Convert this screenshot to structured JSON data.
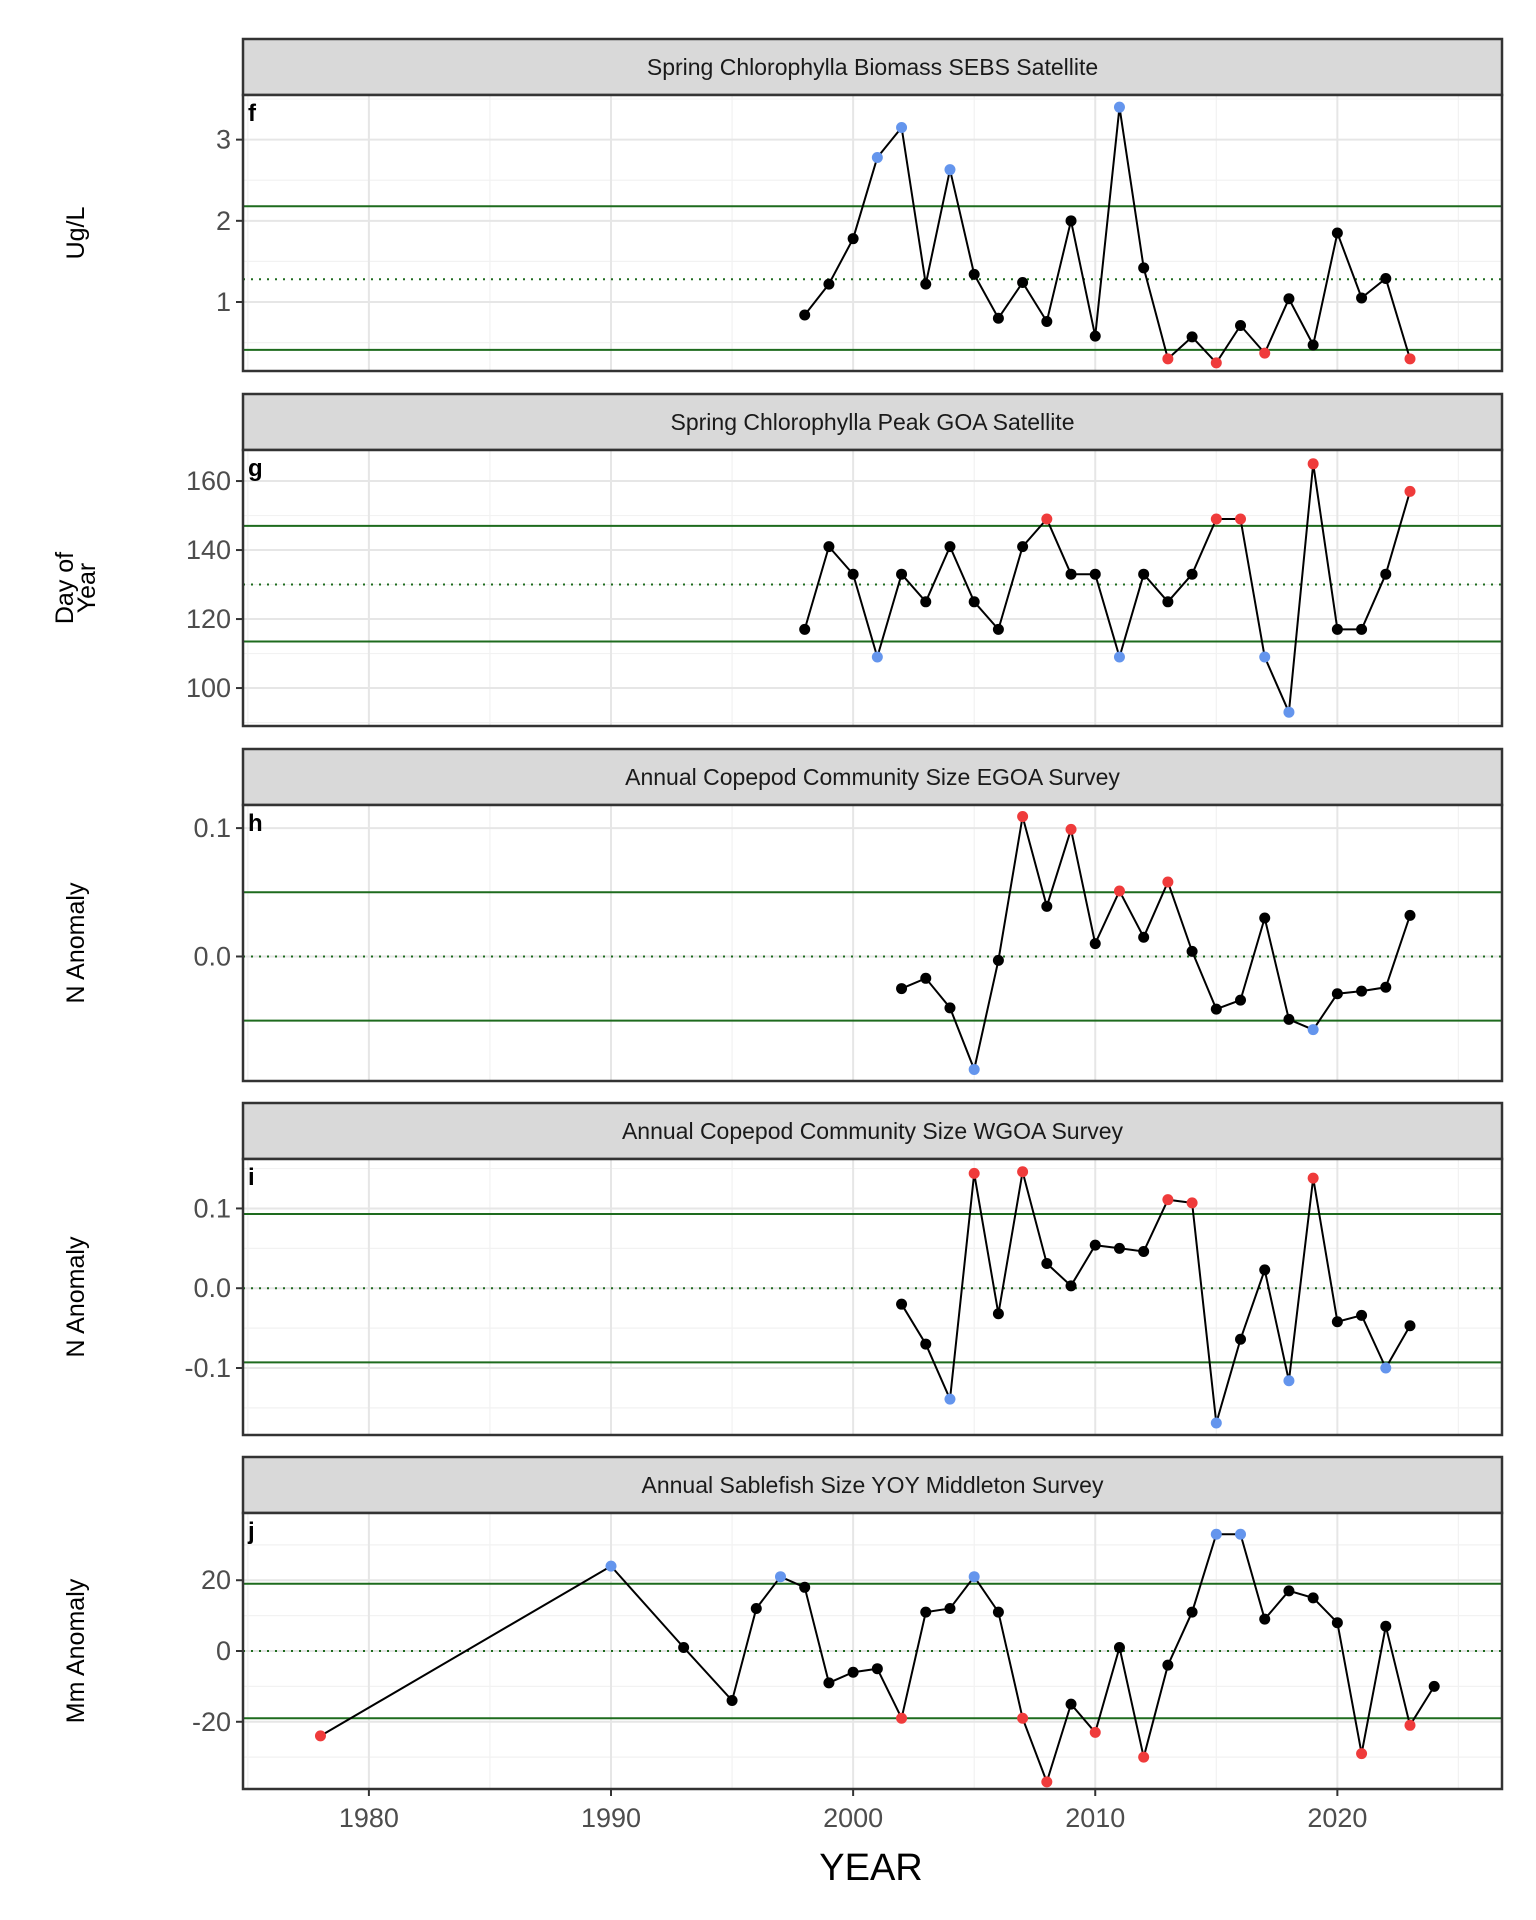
{
  "figure": {
    "xlabel": "YEAR",
    "x_ticks": [
      1980,
      1990,
      2000,
      2010,
      2020
    ],
    "xlim": [
      1974.8,
      2026.8
    ]
  },
  "colors": {
    "line": "#000000",
    "normal": "#000000",
    "high": "#ef3b3b",
    "low": "#6495ed",
    "threshold": "#1e6b1e",
    "mean": "#1e6b1e",
    "strip_fill": "#d9d9d9",
    "grid_major": "#e6e6e6",
    "grid_minor": "#f2f2f2"
  },
  "chart_data": [
    {
      "type": "line",
      "panel_letter": "f",
      "title": "Spring Chlorophylla Biomass SEBS Satellite",
      "ylabel": "Ug/L",
      "ylim": [
        0.15,
        3.55
      ],
      "y_ticks": [
        {
          "v": 1,
          "label": "1"
        },
        {
          "v": 2,
          "label": "2"
        },
        {
          "v": 3,
          "label": "3"
        }
      ],
      "mean": 1.28,
      "upper": 2.18,
      "lower": 0.41,
      "points": [
        {
          "x": 1998,
          "y": 0.84,
          "c": "n"
        },
        {
          "x": 1999,
          "y": 1.22,
          "c": "n"
        },
        {
          "x": 2000,
          "y": 1.78,
          "c": "n"
        },
        {
          "x": 2001,
          "y": 2.78,
          "c": "b"
        },
        {
          "x": 2002,
          "y": 3.15,
          "c": "b"
        },
        {
          "x": 2003,
          "y": 1.22,
          "c": "n"
        },
        {
          "x": 2004,
          "y": 2.63,
          "c": "b"
        },
        {
          "x": 2005,
          "y": 1.34,
          "c": "n"
        },
        {
          "x": 2006,
          "y": 0.8,
          "c": "n"
        },
        {
          "x": 2007,
          "y": 1.24,
          "c": "n"
        },
        {
          "x": 2008,
          "y": 0.76,
          "c": "n"
        },
        {
          "x": 2009,
          "y": 2.0,
          "c": "n"
        },
        {
          "x": 2010,
          "y": 0.58,
          "c": "n"
        },
        {
          "x": 2011,
          "y": 3.4,
          "c": "b"
        },
        {
          "x": 2012,
          "y": 1.42,
          "c": "n"
        },
        {
          "x": 2013,
          "y": 0.3,
          "c": "r"
        },
        {
          "x": 2014,
          "y": 0.57,
          "c": "n"
        },
        {
          "x": 2015,
          "y": 0.25,
          "c": "r"
        },
        {
          "x": 2016,
          "y": 0.71,
          "c": "n"
        },
        {
          "x": 2017,
          "y": 0.37,
          "c": "r"
        },
        {
          "x": 2018,
          "y": 1.04,
          "c": "n"
        },
        {
          "x": 2019,
          "y": 0.47,
          "c": "n"
        },
        {
          "x": 2020,
          "y": 1.85,
          "c": "n"
        },
        {
          "x": 2021,
          "y": 1.05,
          "c": "n"
        },
        {
          "x": 2022,
          "y": 1.29,
          "c": "n"
        },
        {
          "x": 2023,
          "y": 0.3,
          "c": "r"
        }
      ]
    },
    {
      "type": "line",
      "panel_letter": "g",
      "title": "Spring Chlorophylla Peak GOA Satellite",
      "ylabel": "Day of\nYear",
      "ylim": [
        89,
        169
      ],
      "y_ticks": [
        {
          "v": 100,
          "label": "100"
        },
        {
          "v": 120,
          "label": "120"
        },
        {
          "v": 140,
          "label": "140"
        },
        {
          "v": 160,
          "label": "160"
        }
      ],
      "mean": 130,
      "upper": 147,
      "lower": 113.5,
      "points": [
        {
          "x": 1998,
          "y": 117,
          "c": "n"
        },
        {
          "x": 1999,
          "y": 141,
          "c": "n"
        },
        {
          "x": 2000,
          "y": 133,
          "c": "n"
        },
        {
          "x": 2001,
          "y": 109,
          "c": "b"
        },
        {
          "x": 2002,
          "y": 133,
          "c": "n"
        },
        {
          "x": 2003,
          "y": 125,
          "c": "n"
        },
        {
          "x": 2004,
          "y": 141,
          "c": "n"
        },
        {
          "x": 2005,
          "y": 125,
          "c": "n"
        },
        {
          "x": 2006,
          "y": 117,
          "c": "n"
        },
        {
          "x": 2007,
          "y": 141,
          "c": "n"
        },
        {
          "x": 2008,
          "y": 149,
          "c": "r"
        },
        {
          "x": 2009,
          "y": 133,
          "c": "n"
        },
        {
          "x": 2010,
          "y": 133,
          "c": "n"
        },
        {
          "x": 2011,
          "y": 109,
          "c": "b"
        },
        {
          "x": 2012,
          "y": 133,
          "c": "n"
        },
        {
          "x": 2013,
          "y": 125,
          "c": "n"
        },
        {
          "x": 2014,
          "y": 133,
          "c": "n"
        },
        {
          "x": 2015,
          "y": 149,
          "c": "r"
        },
        {
          "x": 2016,
          "y": 149,
          "c": "r"
        },
        {
          "x": 2017,
          "y": 109,
          "c": "b"
        },
        {
          "x": 2018,
          "y": 93,
          "c": "b"
        },
        {
          "x": 2019,
          "y": 165,
          "c": "r"
        },
        {
          "x": 2020,
          "y": 117,
          "c": "n"
        },
        {
          "x": 2021,
          "y": 117,
          "c": "n"
        },
        {
          "x": 2022,
          "y": 133,
          "c": "n"
        },
        {
          "x": 2023,
          "y": 157,
          "c": "r"
        }
      ]
    },
    {
      "type": "line",
      "panel_letter": "h",
      "title": "Annual Copepod Community Size EGOA Survey",
      "ylabel": "N Anomaly",
      "ylim": [
        -0.097,
        0.118
      ],
      "y_ticks": [
        {
          "v": 0.0,
          "label": "0.0"
        },
        {
          "v": 0.1,
          "label": "0.1"
        }
      ],
      "mean": 0.0,
      "upper": 0.05,
      "lower": -0.05,
      "points": [
        {
          "x": 2002,
          "y": -0.025,
          "c": "n"
        },
        {
          "x": 2003,
          "y": -0.017,
          "c": "n"
        },
        {
          "x": 2004,
          "y": -0.04,
          "c": "n"
        },
        {
          "x": 2005,
          "y": -0.088,
          "c": "b"
        },
        {
          "x": 2006,
          "y": -0.003,
          "c": "n"
        },
        {
          "x": 2007,
          "y": 0.109,
          "c": "r"
        },
        {
          "x": 2008,
          "y": 0.039,
          "c": "n"
        },
        {
          "x": 2009,
          "y": 0.099,
          "c": "r"
        },
        {
          "x": 2010,
          "y": 0.01,
          "c": "n"
        },
        {
          "x": 2011,
          "y": 0.051,
          "c": "r"
        },
        {
          "x": 2012,
          "y": 0.015,
          "c": "n"
        },
        {
          "x": 2013,
          "y": 0.058,
          "c": "r"
        },
        {
          "x": 2014,
          "y": 0.004,
          "c": "n"
        },
        {
          "x": 2015,
          "y": -0.041,
          "c": "n"
        },
        {
          "x": 2016,
          "y": -0.034,
          "c": "n"
        },
        {
          "x": 2017,
          "y": 0.03,
          "c": "n"
        },
        {
          "x": 2018,
          "y": -0.049,
          "c": "n"
        },
        {
          "x": 2019,
          "y": -0.057,
          "c": "b"
        },
        {
          "x": 2020,
          "y": -0.029,
          "c": "n"
        },
        {
          "x": 2021,
          "y": -0.027,
          "c": "n"
        },
        {
          "x": 2022,
          "y": -0.024,
          "c": "n"
        },
        {
          "x": 2023,
          "y": 0.032,
          "c": "n"
        }
      ]
    },
    {
      "type": "line",
      "panel_letter": "i",
      "title": "Annual Copepod Community Size WGOA Survey",
      "ylabel": "N Anomaly",
      "ylim": [
        -0.184,
        0.162
      ],
      "y_ticks": [
        {
          "v": -0.1,
          "label": "-0.1"
        },
        {
          "v": 0.0,
          "label": "0.0"
        },
        {
          "v": 0.1,
          "label": "0.1"
        }
      ],
      "mean": 0.0,
      "upper": 0.093,
      "lower": -0.093,
      "points": [
        {
          "x": 2002,
          "y": -0.02,
          "c": "n"
        },
        {
          "x": 2003,
          "y": -0.07,
          "c": "n"
        },
        {
          "x": 2004,
          "y": -0.139,
          "c": "b"
        },
        {
          "x": 2005,
          "y": 0.144,
          "c": "r"
        },
        {
          "x": 2006,
          "y": -0.032,
          "c": "n"
        },
        {
          "x": 2007,
          "y": 0.146,
          "c": "r"
        },
        {
          "x": 2008,
          "y": 0.031,
          "c": "n"
        },
        {
          "x": 2009,
          "y": 0.003,
          "c": "n"
        },
        {
          "x": 2010,
          "y": 0.054,
          "c": "n"
        },
        {
          "x": 2011,
          "y": 0.05,
          "c": "n"
        },
        {
          "x": 2012,
          "y": 0.046,
          "c": "n"
        },
        {
          "x": 2013,
          "y": 0.111,
          "c": "r"
        },
        {
          "x": 2014,
          "y": 0.107,
          "c": "r"
        },
        {
          "x": 2015,
          "y": -0.169,
          "c": "b"
        },
        {
          "x": 2016,
          "y": -0.064,
          "c": "n"
        },
        {
          "x": 2017,
          "y": 0.023,
          "c": "n"
        },
        {
          "x": 2018,
          "y": -0.116,
          "c": "b"
        },
        {
          "x": 2019,
          "y": 0.138,
          "c": "r"
        },
        {
          "x": 2020,
          "y": -0.042,
          "c": "n"
        },
        {
          "x": 2021,
          "y": -0.034,
          "c": "n"
        },
        {
          "x": 2022,
          "y": -0.1,
          "c": "b"
        },
        {
          "x": 2023,
          "y": -0.047,
          "c": "n"
        }
      ]
    },
    {
      "type": "line",
      "panel_letter": "j",
      "title": "Annual Sablefish Size YOY Middleton Survey",
      "ylabel": "Mm Anomaly",
      "ylim": [
        -39,
        39
      ],
      "y_ticks": [
        {
          "v": -20,
          "label": "-20"
        },
        {
          "v": 0,
          "label": "0"
        },
        {
          "v": 20,
          "label": "20"
        }
      ],
      "mean": 0,
      "upper": 19,
      "lower": -19,
      "points": [
        {
          "x": 1978,
          "y": -24,
          "c": "r"
        },
        {
          "x": 1990,
          "y": 24,
          "c": "b"
        },
        {
          "x": 1993,
          "y": 1,
          "c": "n"
        },
        {
          "x": 1995,
          "y": -14,
          "c": "n"
        },
        {
          "x": 1996,
          "y": 12,
          "c": "n"
        },
        {
          "x": 1997,
          "y": 21,
          "c": "b"
        },
        {
          "x": 1998,
          "y": 18,
          "c": "n"
        },
        {
          "x": 1999,
          "y": -9,
          "c": "n"
        },
        {
          "x": 2000,
          "y": -6,
          "c": "n"
        },
        {
          "x": 2001,
          "y": -5,
          "c": "n"
        },
        {
          "x": 2002,
          "y": -19,
          "c": "r"
        },
        {
          "x": 2003,
          "y": 11,
          "c": "n"
        },
        {
          "x": 2004,
          "y": 12,
          "c": "n"
        },
        {
          "x": 2005,
          "y": 21,
          "c": "b"
        },
        {
          "x": 2006,
          "y": 11,
          "c": "n"
        },
        {
          "x": 2007,
          "y": -19,
          "c": "r"
        },
        {
          "x": 2008,
          "y": -37,
          "c": "r"
        },
        {
          "x": 2009,
          "y": -15,
          "c": "n"
        },
        {
          "x": 2010,
          "y": -23,
          "c": "r"
        },
        {
          "x": 2011,
          "y": 1,
          "c": "n"
        },
        {
          "x": 2012,
          "y": -30,
          "c": "r"
        },
        {
          "x": 2013,
          "y": -4,
          "c": "n"
        },
        {
          "x": 2014,
          "y": 11,
          "c": "n"
        },
        {
          "x": 2015,
          "y": 33,
          "c": "b"
        },
        {
          "x": 2016,
          "y": 33,
          "c": "b"
        },
        {
          "x": 2017,
          "y": 9,
          "c": "n"
        },
        {
          "x": 2018,
          "y": 17,
          "c": "n"
        },
        {
          "x": 2019,
          "y": 15,
          "c": "n"
        },
        {
          "x": 2020,
          "y": 8,
          "c": "n"
        },
        {
          "x": 2021,
          "y": -29,
          "c": "r"
        },
        {
          "x": 2022,
          "y": 7,
          "c": "n"
        },
        {
          "x": 2023,
          "y": -21,
          "c": "r"
        },
        {
          "x": 2024,
          "y": -10,
          "c": "n"
        }
      ]
    }
  ]
}
